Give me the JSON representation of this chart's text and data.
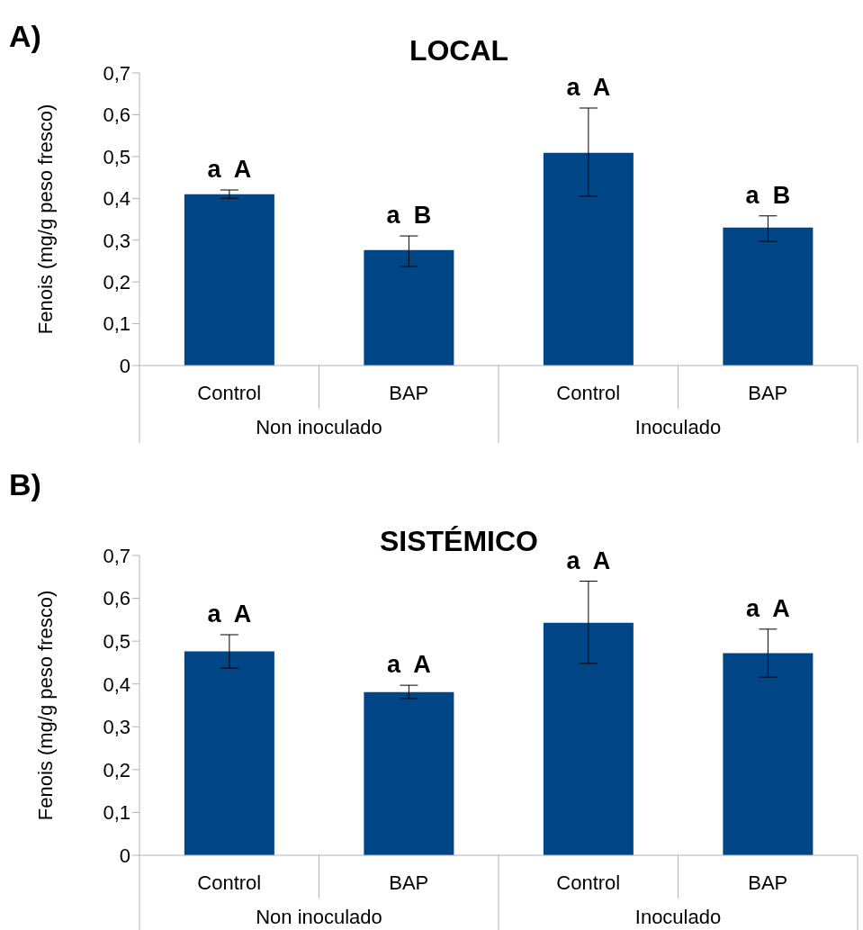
{
  "chart_data": [
    {
      "type": "bar",
      "title": "LOCAL",
      "ylabel": "Fenois (mg/g peso fresco)",
      "categories": [
        "Control",
        "BAP",
        "Control",
        "BAP"
      ],
      "values": [
        0.41,
        0.276,
        0.509,
        0.33
      ],
      "color": "#004586",
      "errors": [
        [
          0.4,
          0.42
        ],
        [
          0.237,
          0.31
        ],
        [
          0.405,
          0.616
        ],
        [
          0.297,
          0.358
        ]
      ],
      "value_labels": [
        "a  A",
        "a  B",
        "a  A",
        "a  B"
      ],
      "ylim": [
        0,
        0.7
      ],
      "yticks": [
        0,
        {
          "value": 0.1,
          "label": "0,1"
        },
        {
          "value": 0.2,
          "label": "0,2"
        },
        {
          "value": 0.3,
          "label": "0,3"
        },
        {
          "value": 0.4,
          "label": "0,4"
        },
        {
          "value": 0.5,
          "label": "0,5"
        },
        {
          "value": 0.6,
          "label": "0,6"
        },
        {
          "value": 0.7,
          "label": "0,7"
        }
      ],
      "annotations": [
        "A)",
        "Non inoculado",
        "Inoculado"
      ]
    },
    {
      "type": "bar",
      "title": "SISTÉMICO",
      "ylabel": "Fenois (mg/g peso fresco)",
      "categories": [
        "Control",
        "BAP",
        "Control",
        "BAP"
      ],
      "values": [
        0.476,
        0.381,
        0.543,
        0.472
      ],
      "color": "#004586",
      "errors": [
        [
          0.437,
          0.515
        ],
        [
          0.366,
          0.397
        ],
        [
          0.448,
          0.64
        ],
        [
          0.416,
          0.528
        ]
      ],
      "value_labels": [
        "a  A",
        "a  A",
        "a  A",
        "a  A"
      ],
      "ylim": [
        0,
        0.7
      ],
      "yticks": [
        0,
        {
          "value": 0.1,
          "label": "0,1"
        },
        {
          "value": 0.2,
          "label": "0,2"
        },
        {
          "value": 0.3,
          "label": "0,3"
        },
        {
          "value": 0.4,
          "label": "0,4"
        },
        {
          "value": 0.5,
          "label": "0,5"
        },
        {
          "value": 0.6,
          "label": "0,6"
        },
        {
          "value": 0.7,
          "label": "0,7"
        }
      ],
      "annotations": [
        "B)",
        "Non inoculado",
        "Inoculado"
      ]
    }
  ]
}
